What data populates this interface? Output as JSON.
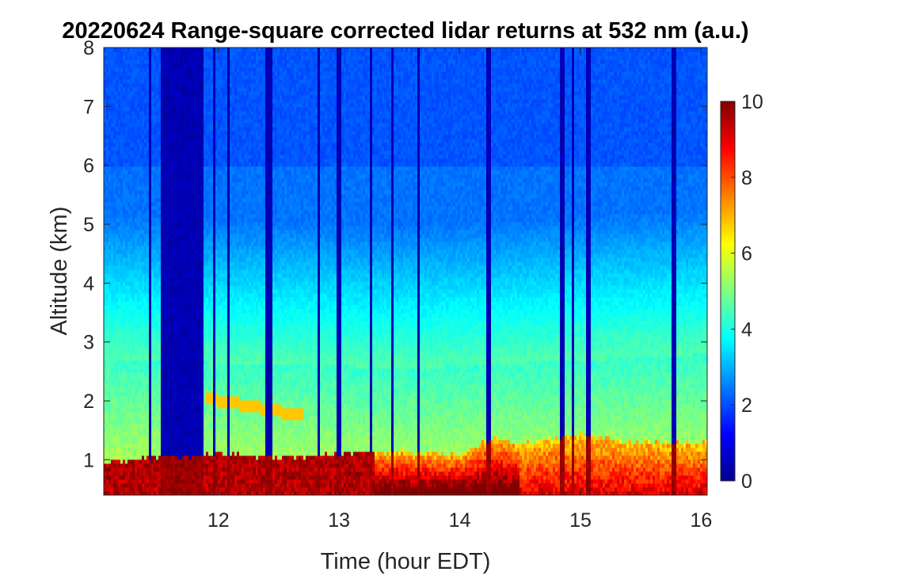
{
  "chart_data": {
    "type": "heatmap",
    "title": "20220624  Range-square corrected lidar returns at 532 nm (a.u.)",
    "xlabel": "Time (hour EDT)",
    "ylabel": "Altitude (km)",
    "xlim": [
      11.05,
      16.05
    ],
    "ylim": [
      0.4,
      8
    ],
    "xticks": [
      12,
      13,
      14,
      15,
      16
    ],
    "yticks": [
      1,
      2,
      3,
      4,
      5,
      6,
      7,
      8
    ],
    "colorbar": {
      "range": [
        0,
        10
      ],
      "ticks": [
        0,
        2,
        4,
        6,
        8,
        10
      ],
      "colormap": "jet"
    },
    "background_level": 2.2,
    "aerosol_layer": {
      "top_km": [
        {
          "time": 11.05,
          "value": 2.7
        },
        {
          "time": 12.0,
          "value": 2.65
        },
        {
          "time": 13.0,
          "value": 2.6
        },
        {
          "time": 13.5,
          "value": 2.55
        },
        {
          "time": 14.0,
          "value": 2.6
        },
        {
          "time": 14.5,
          "value": 2.65
        },
        {
          "time": 15.0,
          "value": 2.7
        },
        {
          "time": 16.05,
          "value": 2.8
        }
      ],
      "level": 5.8
    },
    "elevated_layer": {
      "from_time": 11.9,
      "to_time": 12.7,
      "alt_km": [
        2.05,
        1.75
      ],
      "level": 6.8
    },
    "boundary_layer_top_km": [
      {
        "time": 11.05,
        "value": 0.95
      },
      {
        "time": 11.5,
        "value": 1.05
      },
      {
        "time": 12.0,
        "value": 1.1
      },
      {
        "time": 12.5,
        "value": 1.05
      },
      {
        "time": 13.0,
        "value": 1.1
      },
      {
        "time": 13.5,
        "value": 1.15
      },
      {
        "time": 14.0,
        "value": 1.1
      },
      {
        "time": 14.3,
        "value": 1.4
      },
      {
        "time": 14.5,
        "value": 1.25
      },
      {
        "time": 15.0,
        "value": 1.45
      },
      {
        "time": 15.3,
        "value": 1.35
      },
      {
        "time": 15.5,
        "value": 1.3
      },
      {
        "time": 16.05,
        "value": 1.3
      }
    ],
    "boundary_layer_max": 10,
    "cloud_gaps": [
      {
        "from_time": 11.43,
        "to_time": 11.45
      },
      {
        "from_time": 11.52,
        "to_time": 11.87
      },
      {
        "from_time": 11.95,
        "to_time": 11.98
      },
      {
        "from_time": 12.08,
        "to_time": 12.1
      },
      {
        "from_time": 12.38,
        "to_time": 12.45
      },
      {
        "from_time": 12.82,
        "to_time": 12.85
      },
      {
        "from_time": 12.98,
        "to_time": 13.02
      },
      {
        "from_time": 13.26,
        "to_time": 13.28
      },
      {
        "from_time": 13.43,
        "to_time": 13.46
      },
      {
        "from_time": 13.64,
        "to_time": 13.67
      },
      {
        "from_time": 14.21,
        "to_time": 14.25
      },
      {
        "from_time": 14.83,
        "to_time": 14.86
      },
      {
        "from_time": 14.93,
        "to_time": 14.95
      },
      {
        "from_time": 15.05,
        "to_time": 15.08
      },
      {
        "from_time": 15.75,
        "to_time": 15.8
      }
    ]
  }
}
